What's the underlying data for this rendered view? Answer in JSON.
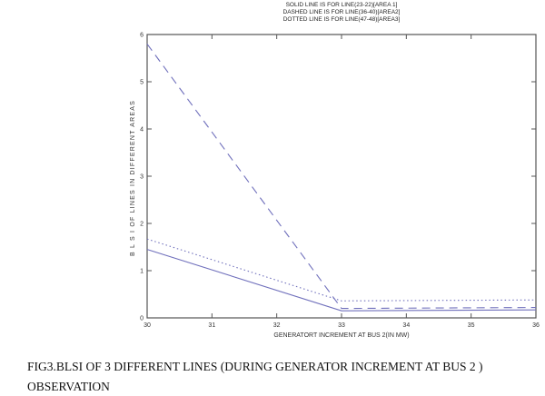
{
  "legend": {
    "lines": [
      "SOLID LINE IS FOR LINE(23-22)[AREA 1]",
      "DASHED LINE IS FOR LINE(36-40)[AREA2]",
      "DOTTED LINE IS FOR LINE(47-48)[AREA3]"
    ]
  },
  "chart_data": {
    "type": "line",
    "title": "",
    "xlabel": "GENERATORT INCREMENT AT BUS 2(IN MW)",
    "ylabel": "B L S I OF LINES IN DIFFERENT AREAS",
    "xlim": [
      30,
      36
    ],
    "ylim": [
      0,
      6
    ],
    "x_ticks": [
      30,
      31,
      32,
      33,
      34,
      35,
      36
    ],
    "y_ticks": [
      0,
      1,
      2,
      3,
      4,
      5,
      6
    ],
    "grid": false,
    "legend_position": "above-plot-centered",
    "line_color": "#7070bc",
    "axis_color": "#555555",
    "series": [
      {
        "name": "LINE(23-22)[AREA 1]",
        "style": "solid",
        "x": [
          30,
          33,
          36
        ],
        "y": [
          1.45,
          0.15,
          0.17
        ]
      },
      {
        "name": "LINE(36-40)[AREA2]",
        "style": "dashed",
        "x": [
          30,
          33,
          36
        ],
        "y": [
          5.8,
          0.2,
          0.22
        ]
      },
      {
        "name": "LINE(47-48)[AREA3]",
        "style": "dotted",
        "x": [
          30,
          33,
          36
        ],
        "y": [
          1.67,
          0.36,
          0.38
        ]
      }
    ]
  },
  "caption": {
    "line1": "FIG3.BLSI OF 3 DIFFERENT LINES (DURING GENERATOR INCREMENT AT BUS 2 )",
    "line2": "OBSERVATION"
  }
}
